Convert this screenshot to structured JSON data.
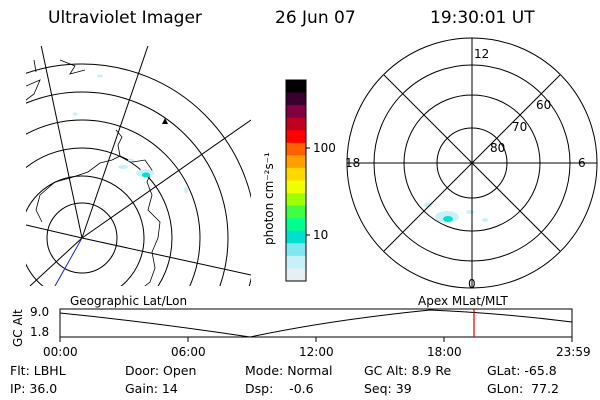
{
  "header": {
    "instrument": "Ultraviolet Imager",
    "date": "26 Jun 07",
    "time": "19:30:01 UT"
  },
  "colorbar": {
    "unit_label": "photon cm⁻²s⁻¹",
    "ticks": [
      "100",
      "10"
    ],
    "colors": [
      "#000000",
      "#3a0030",
      "#800040",
      "#c00020",
      "#ff0000",
      "#ff6000",
      "#ffa000",
      "#ffd800",
      "#f0ff00",
      "#a0ff00",
      "#40ff40",
      "#00ff90",
      "#00e0d0",
      "#80e8f0",
      "#c8f0f8",
      "#e6f0f4"
    ]
  },
  "left_map": {
    "caption": "Geographic Lat/Lon"
  },
  "right_map": {
    "caption": "Apex MLat/MLT",
    "mlt_labels": {
      "top": "12",
      "bottom": "0",
      "left": "18",
      "right": "6"
    },
    "lat_labels": [
      "60",
      "70",
      "80"
    ]
  },
  "altitude_plot": {
    "ylabel": "GC Alt",
    "yticks": [
      "9.0",
      "1.8"
    ],
    "xticks": [
      "00:00",
      "06:00",
      "12:00",
      "18:00",
      "23:59"
    ],
    "marker_color": "#e00000"
  },
  "info": {
    "filter": "Flt: LBHL",
    "ip": "IP: 36.0",
    "door": "Door: Open",
    "gain": "Gain: 14",
    "mode": "Mode: Normal",
    "dsp": "Dsp:    -0.6",
    "gc_alt": "GC Alt: 8.9 Re",
    "seq": "Seq: 39",
    "glat": "GLat: -65.8",
    "glon": "GLon:  77.2"
  }
}
